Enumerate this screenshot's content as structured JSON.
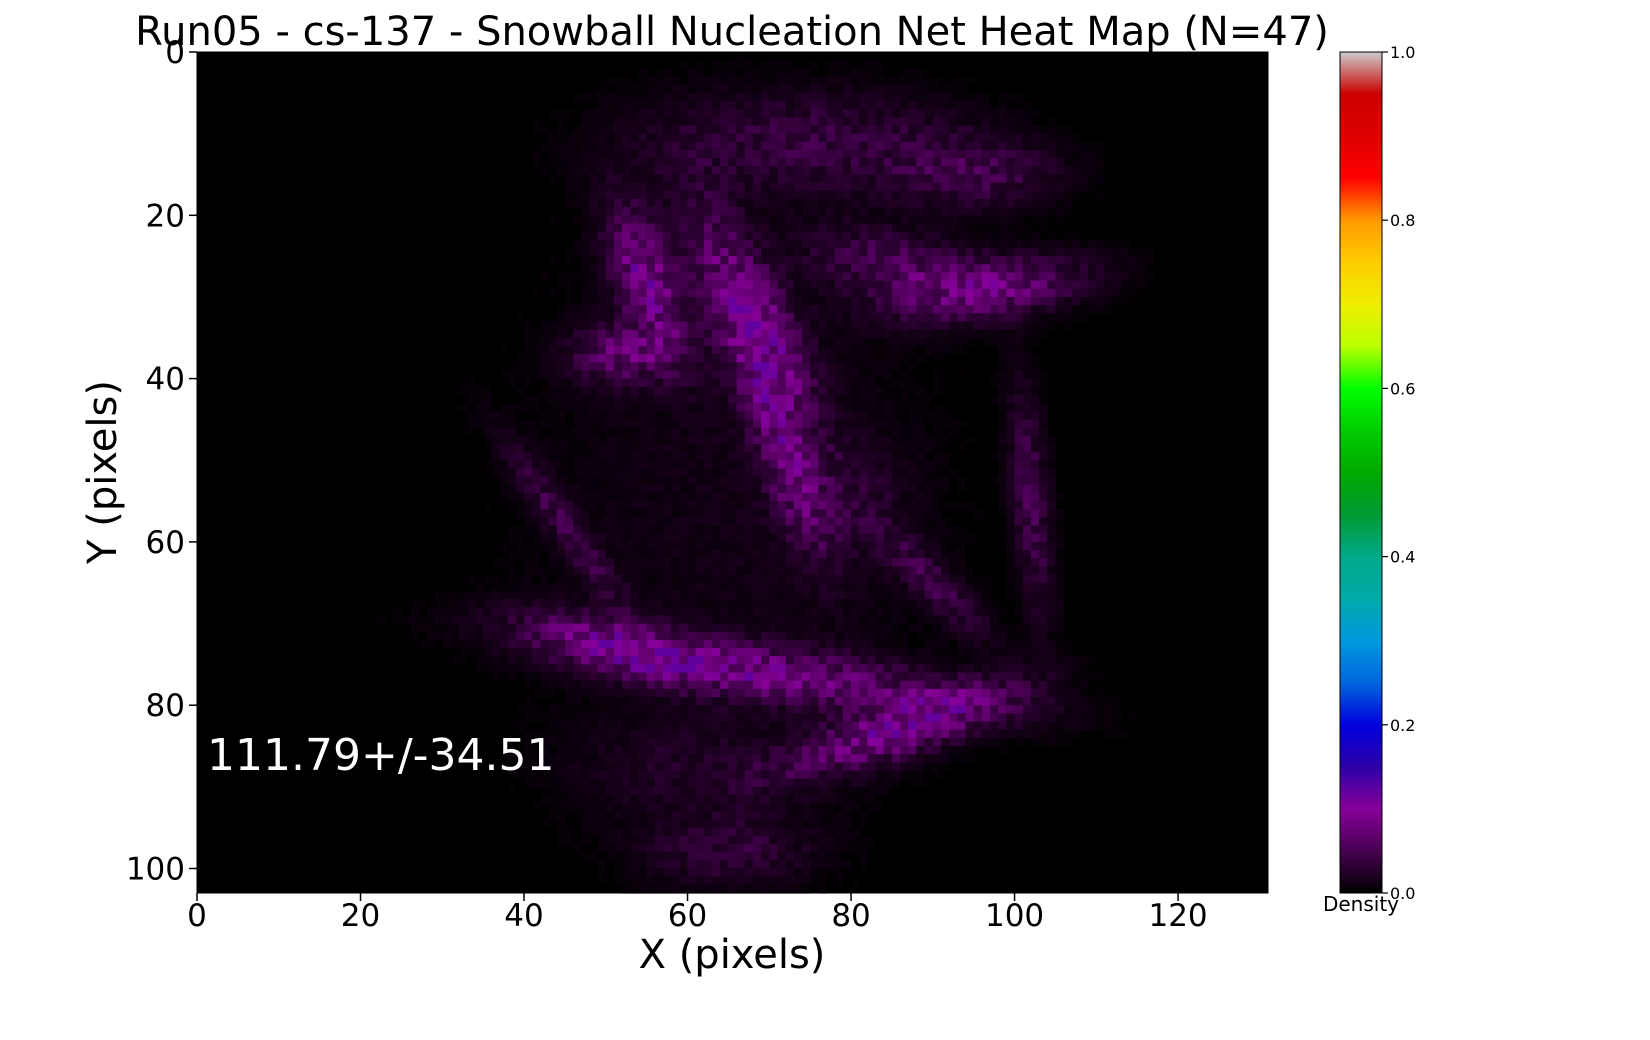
{
  "chart_data": {
    "type": "heatmap",
    "title": "Run05 - cs-137 - Snowball Nucleation Net Heat Map (N=47)",
    "xlabel": "X (pixels)",
    "ylabel": "Y (pixels)",
    "xlim": [
      0,
      131
    ],
    "ylim": [
      103,
      0
    ],
    "x_ticks": [
      0,
      20,
      40,
      60,
      80,
      100,
      120
    ],
    "y_ticks": [
      0,
      20,
      40,
      60,
      80,
      100
    ],
    "annotation": "111.79+/-34.51",
    "colorbar": {
      "label": "Density",
      "range": [
        0.0,
        1.0
      ],
      "ticks": [
        "0.0",
        "0.2",
        "0.4",
        "0.6",
        "0.8",
        "1.0"
      ],
      "colormap": "nipy_spectral",
      "stops": [
        [
          0.0,
          "#000000"
        ],
        [
          0.05,
          "#470051"
        ],
        [
          0.1,
          "#860097"
        ],
        [
          0.15,
          "#2c00a8"
        ],
        [
          0.2,
          "#0000dd"
        ],
        [
          0.25,
          "#0066dd"
        ],
        [
          0.3,
          "#0099dd"
        ],
        [
          0.35,
          "#00aaaa"
        ],
        [
          0.4,
          "#00aa88"
        ],
        [
          0.45,
          "#009933"
        ],
        [
          0.5,
          "#00aa00"
        ],
        [
          0.55,
          "#00cc00"
        ],
        [
          0.6,
          "#00ff00"
        ],
        [
          0.65,
          "#bbff00"
        ],
        [
          0.7,
          "#eeee00"
        ],
        [
          0.75,
          "#ffcc00"
        ],
        [
          0.8,
          "#ff9900"
        ],
        [
          0.85,
          "#ff0000"
        ],
        [
          0.9,
          "#dd0000"
        ],
        [
          0.95,
          "#cc0000"
        ],
        [
          1.0,
          "#cccccc"
        ]
      ]
    },
    "grid": false,
    "density_features": [
      {
        "cx": 68,
        "cy": 33,
        "rx": 14,
        "ry": 4.2,
        "angle": 65,
        "value": 0.09
      },
      {
        "cx": 55,
        "cy": 28,
        "rx": 9,
        "ry": 3.5,
        "angle": 70,
        "value": 0.085
      },
      {
        "cx": 72,
        "cy": 50,
        "rx": 12,
        "ry": 3,
        "angle": 70,
        "value": 0.06
      },
      {
        "cx": 86,
        "cy": 83,
        "rx": 14,
        "ry": 3.2,
        "angle": -18,
        "value": 0.085
      },
      {
        "cx": 70,
        "cy": 76,
        "rx": 26,
        "ry": 3.2,
        "angle": 8,
        "value": 0.07
      },
      {
        "cx": 52,
        "cy": 73,
        "rx": 12,
        "ry": 3,
        "angle": 15,
        "value": 0.06
      },
      {
        "cx": 97,
        "cy": 29,
        "rx": 12,
        "ry": 3.5,
        "angle": -8,
        "value": 0.07
      },
      {
        "cx": 85,
        "cy": 26,
        "rx": 10,
        "ry": 4,
        "angle": 10,
        "value": 0.045
      },
      {
        "cx": 95,
        "cy": 15,
        "rx": 10,
        "ry": 4,
        "angle": 0,
        "value": 0.04
      },
      {
        "cx": 75,
        "cy": 11,
        "rx": 20,
        "ry": 6,
        "angle": 0,
        "value": 0.035
      },
      {
        "cx": 52,
        "cy": 37,
        "rx": 6,
        "ry": 3.5,
        "angle": 0,
        "value": 0.06
      },
      {
        "cx": 45,
        "cy": 58,
        "rx": 12,
        "ry": 2,
        "angle": 55,
        "value": 0.04
      },
      {
        "cx": 102,
        "cy": 55,
        "rx": 14,
        "ry": 2.2,
        "angle": 85,
        "value": 0.045
      },
      {
        "cx": 90,
        "cy": 65,
        "rx": 9,
        "ry": 2.5,
        "angle": 45,
        "value": 0.04
      },
      {
        "cx": 80,
        "cy": 55,
        "rx": 7,
        "ry": 7,
        "angle": 0,
        "value": 0.02
      },
      {
        "cx": 65,
        "cy": 98,
        "rx": 10,
        "ry": 4,
        "angle": 0,
        "value": 0.03
      },
      {
        "cx": 60,
        "cy": 88,
        "rx": 14,
        "ry": 6,
        "angle": 0,
        "value": 0.018
      },
      {
        "cx": 65,
        "cy": 55,
        "rx": 25,
        "ry": 38,
        "angle": 0,
        "value": 0.012
      }
    ]
  }
}
